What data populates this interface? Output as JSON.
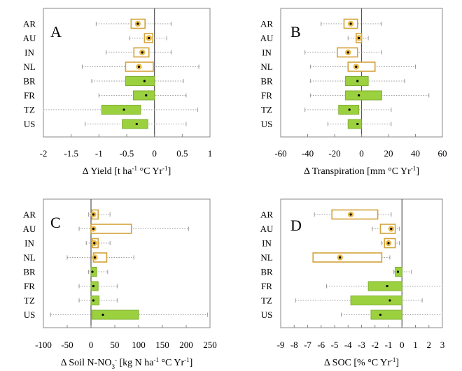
{
  "colors": {
    "hollow_box_stroke": "#d4a23a",
    "filled_box": "#9bd13f",
    "filled_box_stroke": "#7fae2d",
    "whisker": "#9a9a9a",
    "zero_line": "#555555",
    "frame": "#888888",
    "median_dot": "#000000",
    "median_ring_hollow": "#e8b94a"
  },
  "chart_data": [
    {
      "type": "box",
      "panel_letter": "A",
      "title": "",
      "xlabel": {
        "prefix": "Δ Yield [t ha",
        "sup1": "-1",
        "middle": " °C Yr",
        "sup2": "-1",
        "suffix": "]"
      },
      "xlim": [
        -2,
        1
      ],
      "xticks": [
        -2,
        -1.5,
        -1,
        -0.5,
        0,
        0.5,
        1
      ],
      "xtick_labels": [
        "-2",
        "-1.5",
        "-1",
        "-0.5",
        "0",
        "0.5",
        "1"
      ],
      "categories": [
        "AR",
        "AU",
        "IN",
        "NL",
        "BR",
        "FR",
        "TZ",
        "US"
      ],
      "boxes": [
        {
          "whisker_low": -1.05,
          "q1": -0.42,
          "median": -0.3,
          "q3": -0.17,
          "whisker_high": 0.3,
          "style": "hollow"
        },
        {
          "whisker_low": -0.45,
          "q1": -0.18,
          "median": -0.1,
          "q3": -0.03,
          "whisker_high": 0.22,
          "style": "hollow"
        },
        {
          "whisker_low": -0.87,
          "q1": -0.37,
          "median": -0.22,
          "q3": -0.1,
          "whisker_high": 0.3,
          "style": "hollow"
        },
        {
          "whisker_low": -1.3,
          "q1": -0.52,
          "median": -0.28,
          "q3": -0.02,
          "whisker_high": 0.8,
          "style": "hollow"
        },
        {
          "whisker_low": -1.13,
          "q1": -0.52,
          "median": -0.18,
          "q3": 0.0,
          "whisker_high": 0.52,
          "style": "filled"
        },
        {
          "whisker_low": -1.0,
          "q1": -0.38,
          "median": -0.15,
          "q3": 0.0,
          "whisker_high": 0.57,
          "style": "filled"
        },
        {
          "whisker_low": -2.0,
          "q1": -0.95,
          "median": -0.55,
          "q3": -0.25,
          "whisker_high": 0.78,
          "style": "filled"
        },
        {
          "whisker_low": -1.25,
          "q1": -0.58,
          "median": -0.32,
          "q3": -0.12,
          "whisker_high": 0.57,
          "style": "filled"
        }
      ]
    },
    {
      "type": "box",
      "panel_letter": "B",
      "title": "",
      "xlabel": {
        "prefix": "Δ Transpiration [mm °C Yr",
        "sup1": "-1",
        "middle": "",
        "sup2": "",
        "suffix": "]"
      },
      "xlim": [
        -60,
        60
      ],
      "xticks": [
        -60,
        -40,
        -20,
        0,
        20,
        40,
        60
      ],
      "xtick_labels": [
        "-60",
        "-40",
        "-20",
        "0",
        "20",
        "40",
        "60"
      ],
      "categories": [
        "AR",
        "AU",
        "IN",
        "NL",
        "BR",
        "FR",
        "TZ",
        "US"
      ],
      "boxes": [
        {
          "whisker_low": -30,
          "q1": -13,
          "median": -8,
          "q3": -3,
          "whisker_high": 15,
          "style": "hollow"
        },
        {
          "whisker_low": -10,
          "q1": -4,
          "median": -2,
          "q3": 0,
          "whisker_high": 5,
          "style": "hollow"
        },
        {
          "whisker_low": -42,
          "q1": -18,
          "median": -10,
          "q3": -3,
          "whisker_high": 15,
          "style": "hollow"
        },
        {
          "whisker_low": -38,
          "q1": -10,
          "median": -4,
          "q3": 10,
          "whisker_high": 40,
          "style": "hollow"
        },
        {
          "whisker_low": -38,
          "q1": -12,
          "median": -3,
          "q3": 5,
          "whisker_high": 32,
          "style": "filled"
        },
        {
          "whisker_low": -38,
          "q1": -12,
          "median": -2,
          "q3": 15,
          "whisker_high": 50,
          "style": "filled"
        },
        {
          "whisker_low": -42,
          "q1": -17,
          "median": -9,
          "q3": -2,
          "whisker_high": 22,
          "style": "filled"
        },
        {
          "whisker_low": -25,
          "q1": -10,
          "median": -3,
          "q3": 0,
          "whisker_high": 22,
          "style": "filled"
        }
      ]
    },
    {
      "type": "box",
      "panel_letter": "C",
      "title": "",
      "xlabel": {
        "prefix": "Δ Soil N-NO",
        "sub": "3",
        "sup1": "-",
        "middle": " [kg N ha",
        "sup2": "-1",
        "tail": " °C Yr",
        "sup3": "-1",
        "suffix": "]"
      },
      "xlim": [
        -100,
        250
      ],
      "xticks": [
        -100,
        -50,
        0,
        50,
        100,
        150,
        200,
        250
      ],
      "xtick_labels": [
        "-100",
        "-50",
        "0",
        "50",
        "100",
        "150",
        "200",
        "250"
      ],
      "categories": [
        "AR",
        "AU",
        "IN",
        "NL",
        "BR",
        "FR",
        "TZ",
        "US"
      ],
      "boxes": [
        {
          "whisker_low": -5,
          "q1": 2,
          "median": 5,
          "q3": 15,
          "whisker_high": 40,
          "style": "hollow"
        },
        {
          "whisker_low": -25,
          "q1": 0,
          "median": 5,
          "q3": 85,
          "whisker_high": 205,
          "style": "hollow"
        },
        {
          "whisker_low": -10,
          "q1": 3,
          "median": 7,
          "q3": 15,
          "whisker_high": 40,
          "style": "hollow"
        },
        {
          "whisker_low": -50,
          "q1": 5,
          "median": 8,
          "q3": 33,
          "whisker_high": 90,
          "style": "hollow"
        },
        {
          "whisker_low": -5,
          "q1": 0,
          "median": 3,
          "q3": 12,
          "whisker_high": 35,
          "style": "filled"
        },
        {
          "whisker_low": -25,
          "q1": 0,
          "median": 5,
          "q3": 15,
          "whisker_high": 55,
          "style": "filled"
        },
        {
          "whisker_low": -25,
          "q1": 0,
          "median": 5,
          "q3": 17,
          "whisker_high": 55,
          "style": "filled"
        },
        {
          "whisker_low": -85,
          "q1": 2,
          "median": 25,
          "q3": 100,
          "whisker_high": 245,
          "style": "filled"
        }
      ]
    },
    {
      "type": "box",
      "panel_letter": "D",
      "title": "",
      "xlabel": {
        "prefix": "Δ SOC [% °C Yr",
        "sup1": "-1",
        "middle": "",
        "sup2": "",
        "suffix": "]"
      },
      "xlim": [
        -9,
        3
      ],
      "xticks": [
        -9,
        -8,
        -7,
        -6,
        -5,
        -4,
        -3,
        -2,
        -1,
        0,
        1,
        2,
        3
      ],
      "xtick_labels": [
        "-9",
        "-8",
        "-7",
        "-6",
        "-5",
        "-4",
        "-3",
        "-2",
        "-1",
        "0",
        "1",
        "2",
        "3"
      ],
      "categories": [
        "AR",
        "AU",
        "IN",
        "NL",
        "BR",
        "FR",
        "TZ",
        "US"
      ],
      "boxes": [
        {
          "whisker_low": -6.5,
          "q1": -5.2,
          "median": -3.8,
          "q3": -1.8,
          "whisker_high": -0.8,
          "style": "hollow"
        },
        {
          "whisker_low": -2.2,
          "q1": -1.6,
          "median": -0.8,
          "q3": -0.5,
          "whisker_high": -0.2,
          "style": "hollow"
        },
        {
          "whisker_low": -1.5,
          "q1": -1.3,
          "median": -1.0,
          "q3": -0.5,
          "whisker_high": -0.2,
          "style": "hollow"
        },
        {
          "whisker_low": -6.6,
          "q1": -6.6,
          "median": -4.6,
          "q3": -1.5,
          "whisker_high": -0.9,
          "style": "hollow"
        },
        {
          "whisker_low": -0.6,
          "q1": -0.5,
          "median": -0.3,
          "q3": 0.0,
          "whisker_high": 0.7,
          "style": "filled"
        },
        {
          "whisker_low": -5.6,
          "q1": -2.5,
          "median": -1.1,
          "q3": 0.0,
          "whisker_high": 3.0,
          "style": "filled"
        },
        {
          "whisker_low": -7.9,
          "q1": -3.8,
          "median": -0.9,
          "q3": 0.0,
          "whisker_high": 1.5,
          "style": "filled"
        },
        {
          "whisker_low": -4.5,
          "q1": -2.3,
          "median": -1.6,
          "q3": 0.0,
          "whisker_high": 3.0,
          "style": "filled"
        }
      ]
    }
  ]
}
